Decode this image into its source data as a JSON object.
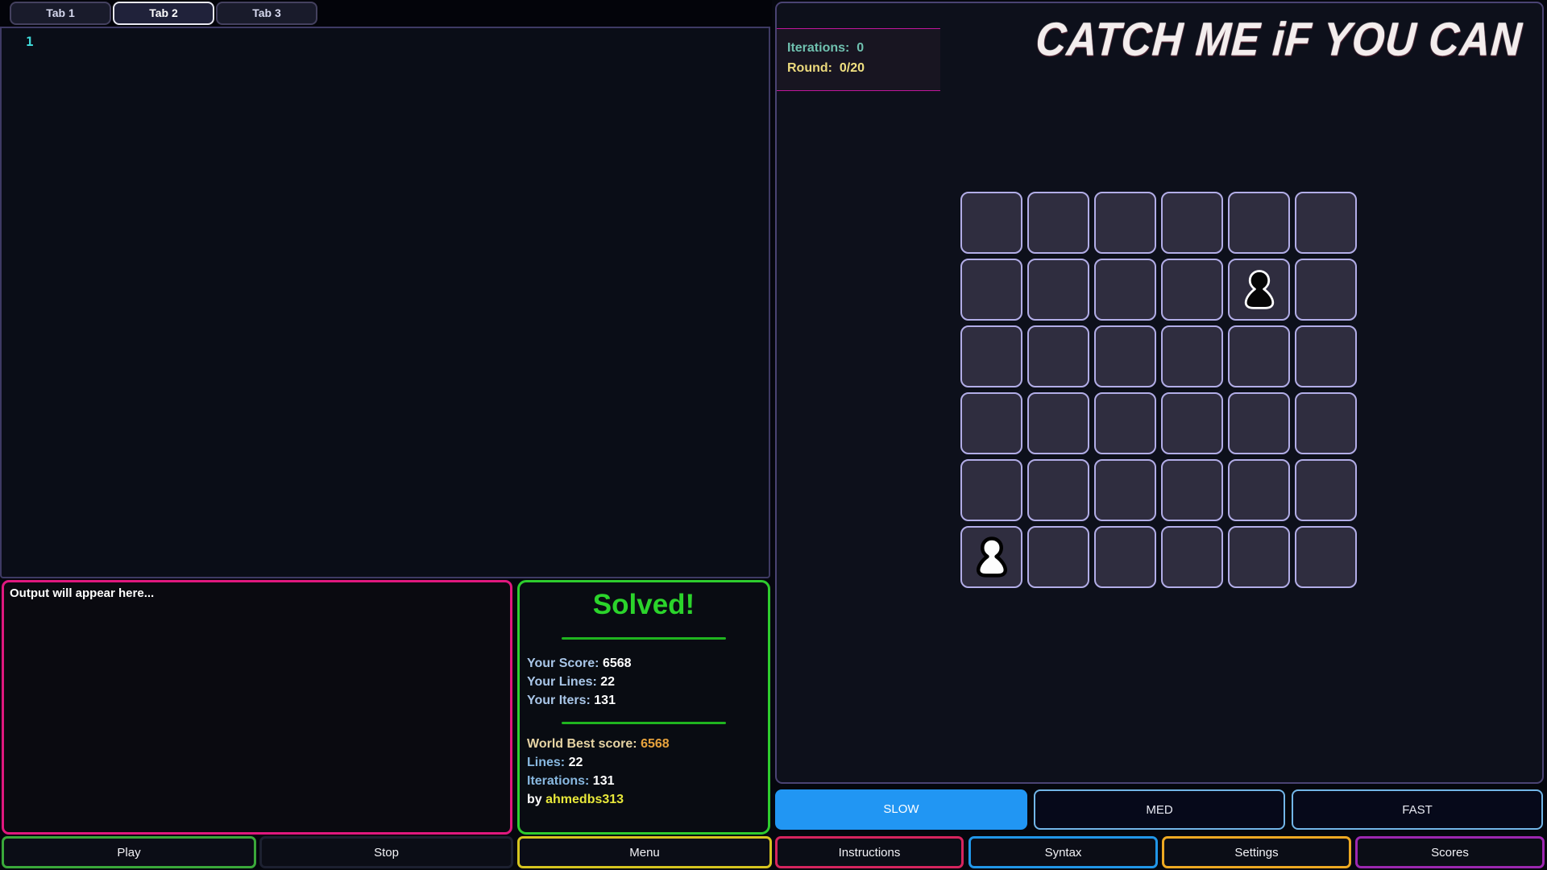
{
  "tabs": [
    {
      "label": "Tab 1",
      "active": false
    },
    {
      "label": "Tab 2",
      "active": true
    },
    {
      "label": "Tab 3",
      "active": false
    }
  ],
  "editor": {
    "line_number": "1"
  },
  "output": {
    "placeholder_text": "Output will appear here..."
  },
  "solved": {
    "title": "Solved!",
    "your_score_label": "Your Score:",
    "your_score": "6568",
    "your_lines_label": "Your Lines:",
    "your_lines": "22",
    "your_iters_label": "Your Iters:",
    "your_iters": "131",
    "world_best_label": "World Best score:",
    "world_best": "6568",
    "lines_label": "Lines:",
    "lines": "22",
    "iterations_label": "Iterations:",
    "iterations": "131",
    "by_label": "by",
    "by_user": "ahmedbs313"
  },
  "stats": {
    "iterations_label": "Iterations:",
    "iterations": "0",
    "round_label": "Round:",
    "round": "0/20"
  },
  "game_title": "CATCH ME iF YOU CAN",
  "board": {
    "rows": 6,
    "cols": 6,
    "pieces": [
      {
        "type": "black-pawn",
        "row": 1,
        "col": 4
      },
      {
        "type": "white-pawn",
        "row": 5,
        "col": 0
      }
    ]
  },
  "speed_buttons": [
    {
      "label": "SLOW",
      "active": true
    },
    {
      "label": "MED",
      "active": false
    },
    {
      "label": "FAST",
      "active": false
    }
  ],
  "action_buttons": {
    "play": "Play",
    "stop": "Stop",
    "menu": "Menu",
    "instructions": "Instructions",
    "syntax": "Syntax",
    "settings": "Settings",
    "scores": "Scores"
  },
  "colors": {
    "output_border": "#e0187e",
    "solved_border": "#2ecc2e",
    "solved_text": "#2bd42b",
    "play_border": "#3aa83a",
    "menu_border": "#d6c51f",
    "instructions_border": "#d6245e",
    "syntax_border": "#2196e8",
    "settings_border": "#eda822",
    "scores_border": "#9c27b0",
    "slow_fill": "#2196f3",
    "cell_border": "#b2ade7",
    "panel_border": "#4a4373",
    "stats_border": "#bf169a",
    "line_number": "#3fd8d8"
  }
}
